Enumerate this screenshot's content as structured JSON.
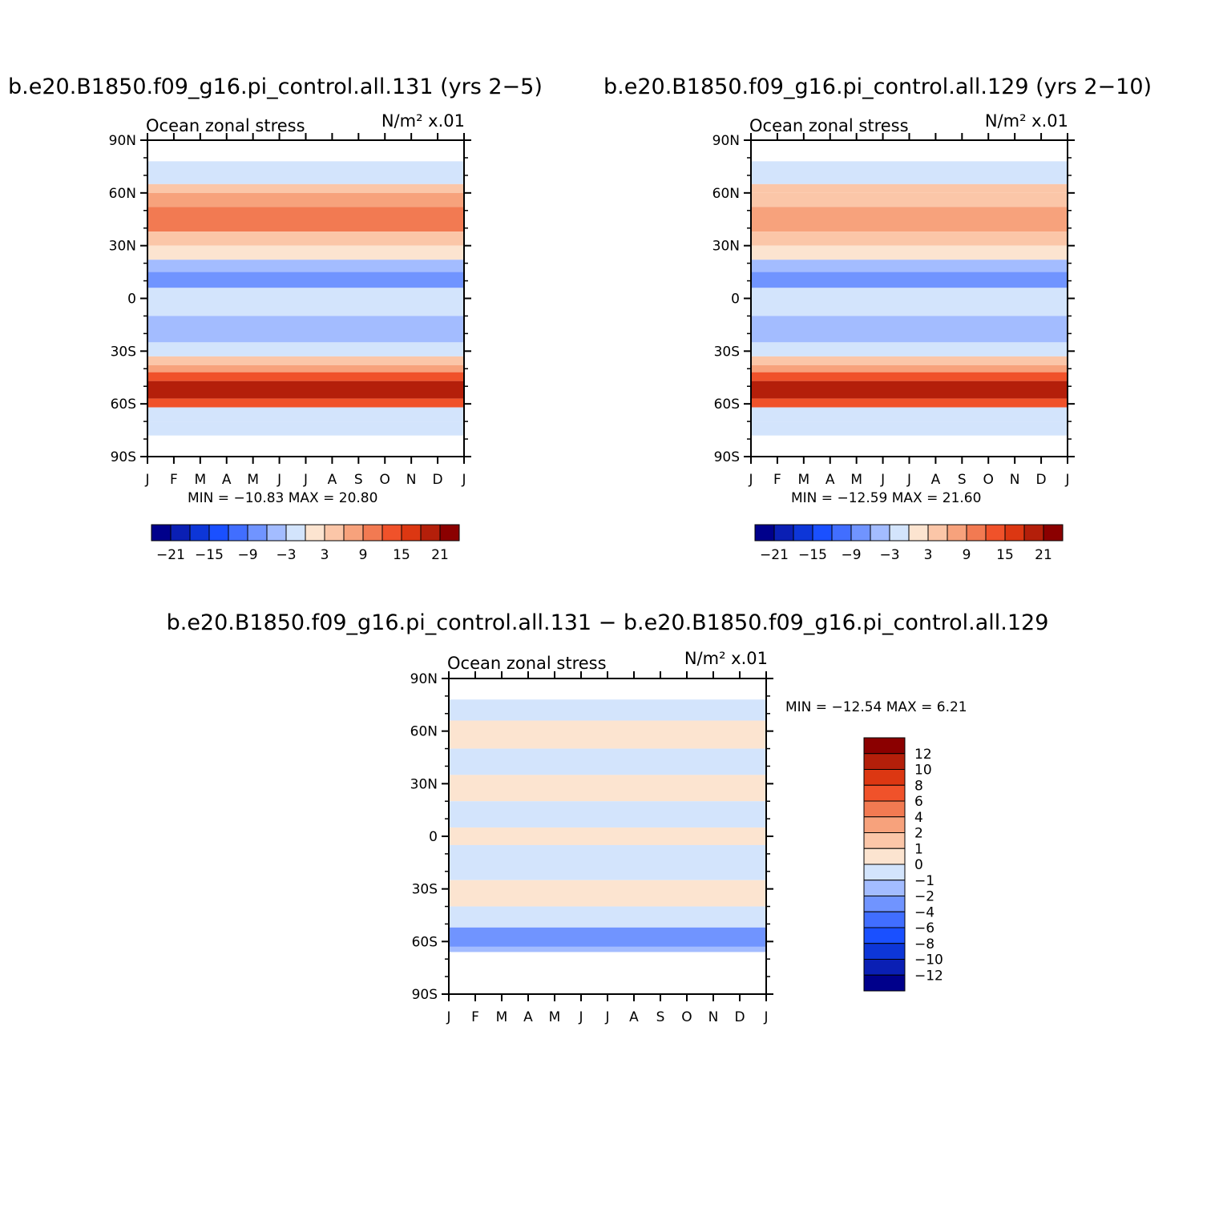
{
  "chart_data": [
    {
      "type": "heatmap",
      "title": "b.e20.B1850.f09_g16.pi_control.all.131 (yrs 2−5)",
      "left_label": "Ocean zonal stress",
      "right_label": "N/m² x.01",
      "x_ticks": [
        "J",
        "F",
        "M",
        "A",
        "M",
        "J",
        "J",
        "A",
        "S",
        "O",
        "N",
        "D",
        "J"
      ],
      "y_ticks": [
        "90N",
        "60N",
        "30N",
        "0",
        "30S",
        "60S",
        "90S"
      ],
      "stats": "MIN = −10.83 MAX =  20.80",
      "colorbar_labels": [
        "−21",
        "−15",
        "−9",
        "−3",
        "3",
        "9",
        "15",
        "21"
      ],
      "bands": [
        {
          "lat_top": 78,
          "lat_bot": 65,
          "value": -2
        },
        {
          "lat_top": 65,
          "lat_bot": 60,
          "value": 4
        },
        {
          "lat_top": 60,
          "lat_bot": 52,
          "value": 6
        },
        {
          "lat_top": 52,
          "lat_bot": 38,
          "value": 9
        },
        {
          "lat_top": 38,
          "lat_bot": 30,
          "value": 4
        },
        {
          "lat_top": 30,
          "lat_bot": 22,
          "value": 1
        },
        {
          "lat_top": 22,
          "lat_bot": 15,
          "value": -4
        },
        {
          "lat_top": 15,
          "lat_bot": 6,
          "value": -7
        },
        {
          "lat_top": 6,
          "lat_bot": 0,
          "value": -2
        },
        {
          "lat_top": 0,
          "lat_bot": -10,
          "value": -1
        },
        {
          "lat_top": -10,
          "lat_bot": -25,
          "value": -6
        },
        {
          "lat_top": -25,
          "lat_bot": -33,
          "value": -3
        },
        {
          "lat_top": -33,
          "lat_bot": -38,
          "value": 4
        },
        {
          "lat_top": -38,
          "lat_bot": -42,
          "value": 8
        },
        {
          "lat_top": -42,
          "lat_bot": -47,
          "value": 13
        },
        {
          "lat_top": -47,
          "lat_bot": -57,
          "value": 19
        },
        {
          "lat_top": -57,
          "lat_bot": -62,
          "value": 12
        },
        {
          "lat_top": -62,
          "lat_bot": -70,
          "value": -1
        },
        {
          "lat_top": -70,
          "lat_bot": -78,
          "value": -1
        }
      ]
    },
    {
      "type": "heatmap",
      "title": "b.e20.B1850.f09_g16.pi_control.all.129 (yrs 2−10)",
      "left_label": "Ocean zonal stress",
      "right_label": "N/m² x.01",
      "x_ticks": [
        "J",
        "F",
        "M",
        "A",
        "M",
        "J",
        "J",
        "A",
        "S",
        "O",
        "N",
        "D",
        "J"
      ],
      "y_ticks": [
        "90N",
        "60N",
        "30N",
        "0",
        "30S",
        "60S",
        "90S"
      ],
      "stats": "MIN = −12.59 MAX =  21.60",
      "colorbar_labels": [
        "−21",
        "−15",
        "−9",
        "−3",
        "3",
        "9",
        "15",
        "21"
      ],
      "bands": [
        {
          "lat_top": 78,
          "lat_bot": 65,
          "value": -2
        },
        {
          "lat_top": 65,
          "lat_bot": 60,
          "value": 4
        },
        {
          "lat_top": 60,
          "lat_bot": 52,
          "value": 5
        },
        {
          "lat_top": 52,
          "lat_bot": 38,
          "value": 8
        },
        {
          "lat_top": 38,
          "lat_bot": 30,
          "value": 4
        },
        {
          "lat_top": 30,
          "lat_bot": 22,
          "value": 1
        },
        {
          "lat_top": 22,
          "lat_bot": 15,
          "value": -4
        },
        {
          "lat_top": 15,
          "lat_bot": 6,
          "value": -7
        },
        {
          "lat_top": 6,
          "lat_bot": 0,
          "value": -2
        },
        {
          "lat_top": 0,
          "lat_bot": -10,
          "value": -1
        },
        {
          "lat_top": -10,
          "lat_bot": -25,
          "value": -6
        },
        {
          "lat_top": -25,
          "lat_bot": -33,
          "value": -3
        },
        {
          "lat_top": -33,
          "lat_bot": -38,
          "value": 4
        },
        {
          "lat_top": -38,
          "lat_bot": -42,
          "value": 8
        },
        {
          "lat_top": -42,
          "lat_bot": -47,
          "value": 13
        },
        {
          "lat_top": -47,
          "lat_bot": -57,
          "value": 20
        },
        {
          "lat_top": -57,
          "lat_bot": -62,
          "value": 12
        },
        {
          "lat_top": -62,
          "lat_bot": -70,
          "value": -1
        },
        {
          "lat_top": -70,
          "lat_bot": -78,
          "value": -1
        }
      ]
    },
    {
      "type": "heatmap",
      "title": "b.e20.B1850.f09_g16.pi_control.all.131 − b.e20.B1850.f09_g16.pi_control.all.129",
      "left_label": "Ocean zonal stress",
      "right_label": "N/m² x.01",
      "x_ticks": [
        "J",
        "F",
        "M",
        "A",
        "M",
        "J",
        "J",
        "A",
        "S",
        "O",
        "N",
        "D",
        "J"
      ],
      "y_ticks": [
        "90N",
        "60N",
        "30N",
        "0",
        "30S",
        "60S",
        "90S"
      ],
      "stats": "MIN = −12.54 MAX =    6.21",
      "colorbar_labels": [
        "12",
        "10",
        "8",
        "6",
        "4",
        "2",
        "1",
        "0",
        "−1",
        "−2",
        "−4",
        "−6",
        "−8",
        "−10",
        "−12"
      ],
      "bands": [
        {
          "lat_top": 78,
          "lat_bot": 66,
          "value": -1
        },
        {
          "lat_top": 66,
          "lat_bot": 50,
          "value": 0.5
        },
        {
          "lat_top": 50,
          "lat_bot": 35,
          "value": -0.5
        },
        {
          "lat_top": 35,
          "lat_bot": 20,
          "value": 0.5
        },
        {
          "lat_top": 20,
          "lat_bot": 5,
          "value": -0.5
        },
        {
          "lat_top": 5,
          "lat_bot": -5,
          "value": 0.5
        },
        {
          "lat_top": -5,
          "lat_bot": -25,
          "value": -0.5
        },
        {
          "lat_top": -25,
          "lat_bot": -40,
          "value": 0.5
        },
        {
          "lat_top": -40,
          "lat_bot": -52,
          "value": -0.5
        },
        {
          "lat_top": -52,
          "lat_bot": -63,
          "value": -3
        },
        {
          "lat_top": -63,
          "lat_bot": -66,
          "value": -1.5
        }
      ]
    }
  ]
}
